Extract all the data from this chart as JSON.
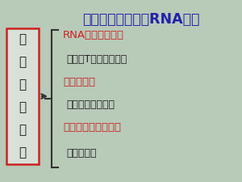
{
  "title": "一组含逆转录酶的RNA病毒",
  "title_color": "#2222aa",
  "bg_color": "#b8cab8",
  "box_text_lines": [
    "反",
    "转",
    "录",
    "病",
    "毒",
    "科"
  ],
  "box_border_color": "#cc2222",
  "box_bg": "#d8e0d8",
  "arrow_color": "#333333",
  "brace_color": "#333333",
  "items": [
    {
      "text": "RNA肿瘤病毒亚科",
      "color": "#cc2222",
      "indent": false
    },
    {
      "text": "人类嗜T淋巴细胞病毒",
      "color": "#222222",
      "indent": true
    },
    {
      "text": "慢病毒亚科",
      "color": "#cc2222",
      "indent": false
    },
    {
      "text": "人类免疫缺陷病毒",
      "color": "#222222",
      "indent": true
    },
    {
      "text": "泡沫反转录病毒亚科",
      "color": "#cc2222",
      "indent": false
    },
    {
      "text": "人泡沫病毒",
      "color": "#222222",
      "indent": true
    }
  ],
  "title_fontsize": 12.5,
  "item_fontsize": 9.5,
  "item_indent_fontsize": 9.0
}
